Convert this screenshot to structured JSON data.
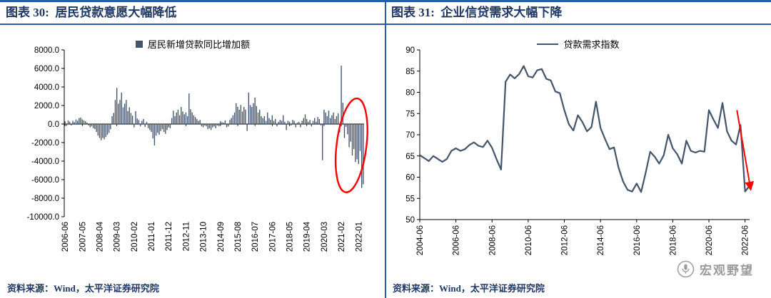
{
  "styles": {
    "accent_blue": "#2B5CA8",
    "navy": "#1F3864",
    "series_color": "#44546A",
    "highlight_red": "#FF0000",
    "watermark_gray": "#9B9B9B",
    "background": "#FFFFFF"
  },
  "left_panel": {
    "title": "图表 30:  居民贷款意愿大幅降低",
    "legend": "居民新增贷款同比增加额",
    "source": "资料来源：Wind，太平洋证券研究院"
  },
  "right_panel": {
    "title": "图表 31:  企业信贷需求大幅下降",
    "legend": "贷款需求指数",
    "source": "资料来源：Wind，太平洋证券研究院",
    "watermark": "宏观野望"
  },
  "chart_data": [
    {
      "type": "bar",
      "title": "居民贷款意愿大幅降低",
      "series_name": "居民新增贷款同比增加额",
      "color": "#44546A",
      "ylim": [
        -10000,
        8000
      ],
      "ytick_step": 2000,
      "grid": false,
      "legend_position": "top",
      "x_start": "2006-06",
      "x_frequency": "monthly",
      "xtick_every": 11,
      "xtick_labels": [
        "2006-06",
        "2007-05",
        "2008-04",
        "2009-03",
        "2010-02",
        "2011-01",
        "2011-12",
        "2012-11",
        "2013-10",
        "2014-09",
        "2015-08",
        "2016-07",
        "2017-06",
        "2018-05",
        "2019-04",
        "2020-03",
        "2021-02",
        "2022-01"
      ],
      "values": [
        300,
        -200,
        400,
        250,
        -150,
        350,
        200,
        500,
        350,
        650,
        700,
        500,
        400,
        300,
        150,
        -150,
        -350,
        -250,
        -450,
        -550,
        -850,
        -1250,
        -1500,
        -1750,
        -1500,
        -1650,
        -1400,
        -1150,
        -950,
        -550,
        850,
        1200,
        2600,
        3900,
        2200,
        2600,
        3400,
        1800,
        2200,
        2600,
        1400,
        1800,
        1200,
        900,
        -350,
        1400,
        600,
        450,
        -250,
        350,
        550,
        -300,
        250,
        -450,
        -650,
        -850,
        -1550,
        -2300,
        -1250,
        -950,
        -1150,
        -750,
        -550,
        -850,
        -1050,
        -650,
        -350,
        -450,
        650,
        1450,
        850,
        1250,
        1550,
        950,
        1850,
        1350,
        1050,
        1250,
        850,
        3300,
        1600,
        1250,
        950,
        750,
        550,
        350,
        450,
        -250,
        -350,
        -150,
        -250,
        -550,
        -450,
        -650,
        -350,
        -250,
        -450,
        -150,
        -250,
        300,
        200,
        150,
        400,
        -350,
        -250,
        450,
        650,
        950,
        1250,
        2250,
        1850,
        1550,
        2050,
        1350,
        1850,
        1550,
        -750,
        3400,
        2050,
        1850,
        2250,
        2850,
        1950,
        1250,
        1550,
        850,
        650,
        850,
        350,
        1250,
        650,
        450,
        950,
        350,
        550,
        -250,
        250,
        450,
        350,
        950,
        250,
        -650,
        350,
        250,
        -150,
        450,
        350,
        -350,
        150,
        250,
        -350,
        350,
        650,
        1050,
        550,
        250,
        450,
        -250,
        350,
        650,
        250,
        750,
        550,
        -150,
        -3900,
        1550,
        1250,
        850,
        1450,
        650,
        950,
        1250,
        550,
        850,
        1150,
        -900,
        6300,
        2300,
        -1500,
        -300,
        -1100,
        -2500,
        -1900,
        -3400,
        -2700,
        -4100,
        -3800,
        -4300,
        -2900,
        -6900,
        -6500
      ],
      "annotation": {
        "shape": "ellipse",
        "color": "#FF0000",
        "center_index": 183,
        "center_value": -2300,
        "radius_index": 9.5,
        "radius_value": 5100,
        "tilt_deg": 7
      }
    },
    {
      "type": "line",
      "title": "企业信贷需求大幅下降",
      "series_name": "贷款需求指数",
      "color": "#44546A",
      "ylim": [
        50,
        90
      ],
      "ytick_step": 5,
      "grid": false,
      "legend_position": "top",
      "x_start": "2004-06",
      "x_frequency": "quarterly",
      "xtick_every": 8,
      "xtick_labels": [
        "2004-06",
        "2006-06",
        "2008-06",
        "2010-06",
        "2012-06",
        "2014-06",
        "2016-06",
        "2018-06",
        "2020-06",
        "2022-06"
      ],
      "values": [
        65.2,
        64.5,
        63.8,
        65.0,
        64.3,
        63.6,
        64.3,
        66.2,
        66.8,
        66.2,
        66.6,
        67.6,
        68.2,
        67.4,
        67.1,
        68.6,
        66.9,
        64.2,
        61.8,
        82.5,
        84.2,
        83.3,
        84.3,
        86.2,
        83.8,
        83.5,
        85.2,
        85.5,
        83.2,
        82.8,
        80.2,
        79.8,
        75.8,
        72.5,
        71.0,
        74.6,
        73.0,
        70.8,
        71.8,
        77.8,
        71.6,
        69.0,
        66.6,
        67.0,
        62.2,
        59.0,
        57.0,
        56.6,
        58.5,
        56.5,
        61.0,
        66.0,
        64.8,
        63.2,
        65.2,
        70.0,
        66.8,
        65.4,
        63.2,
        68.6,
        66.2,
        65.8,
        66.2,
        66.0,
        75.8,
        73.6,
        71.6,
        77.5,
        70.8,
        68.6,
        67.7,
        72.3,
        56.6,
        58.0
      ],
      "annotation": {
        "shape": "arrow",
        "color": "#FF0000",
        "from_index": 70.2,
        "from_value": 75.8,
        "to_index": 73.2,
        "to_value": 57.4
      }
    }
  ]
}
